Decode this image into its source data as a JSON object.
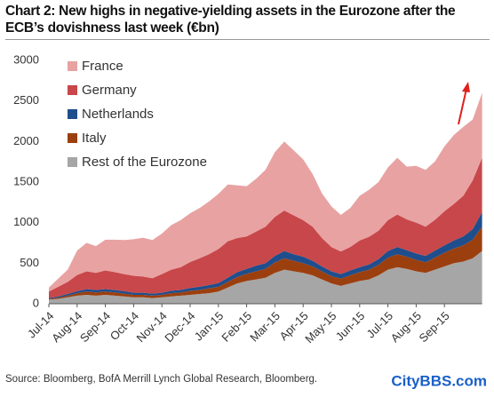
{
  "chart_data": {
    "type": "stacked-area",
    "title": "Chart 2: New highs in negative-yielding assets in the Eurozone after the ECB’s dovishness last week (€bn)",
    "source": "Source: Bloomberg, BofA Merrill Lynch Global Research, Bloomberg.",
    "watermark": "CityBBS.com",
    "categories": [
      "Jul-14",
      null,
      null,
      "Aug-14",
      null,
      null,
      "Sep-14",
      null,
      null,
      "Oct-14",
      null,
      null,
      "Nov-14",
      null,
      null,
      "Dec-14",
      null,
      null,
      "Jan-15",
      null,
      null,
      "Feb-15",
      null,
      null,
      "Mar-15",
      null,
      null,
      "Apr-15",
      null,
      null,
      "May-15",
      null,
      null,
      "Jun-15",
      null,
      null,
      "Jul-15",
      null,
      null,
      "Aug-15",
      null,
      null,
      "Sep-15",
      null,
      null,
      null,
      null
    ],
    "series": [
      {
        "name": "Rest of the Eurozone",
        "color": "#a6a6a6",
        "values": [
          50,
          60,
          80,
          100,
          110,
          100,
          110,
          100,
          90,
          80,
          80,
          70,
          80,
          90,
          100,
          110,
          120,
          130,
          150,
          200,
          250,
          280,
          300,
          320,
          380,
          420,
          400,
          380,
          350,
          300,
          250,
          220,
          250,
          280,
          300,
          350,
          420,
          450,
          430,
          400,
          380,
          420,
          460,
          500,
          520,
          560,
          650
        ]
      },
      {
        "name": "Italy",
        "color": "#9c3f0f",
        "values": [
          10,
          15,
          20,
          30,
          40,
          40,
          40,
          40,
          35,
          30,
          30,
          30,
          30,
          40,
          40,
          50,
          50,
          60,
          60,
          70,
          80,
          90,
          100,
          110,
          130,
          140,
          130,
          120,
          110,
          100,
          90,
          90,
          100,
          110,
          120,
          130,
          150,
          160,
          150,
          140,
          130,
          150,
          170,
          180,
          200,
          230,
          300
        ]
      },
      {
        "name": "Netherlands",
        "color": "#1f4e8c",
        "values": [
          10,
          15,
          20,
          25,
          30,
          30,
          30,
          30,
          30,
          25,
          25,
          25,
          25,
          30,
          30,
          35,
          40,
          40,
          45,
          50,
          60,
          60,
          70,
          70,
          80,
          90,
          80,
          80,
          70,
          60,
          60,
          55,
          60,
          60,
          65,
          70,
          80,
          90,
          80,
          80,
          80,
          85,
          90,
          100,
          110,
          130,
          180
        ]
      },
      {
        "name": "Germany",
        "color": "#c8474a",
        "values": [
          80,
          120,
          150,
          200,
          220,
          210,
          230,
          220,
          210,
          210,
          200,
          190,
          230,
          260,
          280,
          320,
          350,
          380,
          420,
          450,
          420,
          400,
          420,
          450,
          480,
          500,
          480,
          450,
          420,
          350,
          300,
          280,
          290,
          330,
          340,
          350,
          380,
          400,
          380,
          380,
          360,
          380,
          420,
          450,
          500,
          600,
          670
        ]
      },
      {
        "name": "France",
        "color": "#e8a2a2",
        "values": [
          50,
          100,
          150,
          300,
          350,
          330,
          380,
          400,
          420,
          450,
          480,
          470,
          500,
          550,
          580,
          600,
          620,
          650,
          680,
          700,
          650,
          620,
          650,
          700,
          800,
          850,
          800,
          750,
          650,
          550,
          500,
          450,
          480,
          550,
          580,
          600,
          650,
          700,
          650,
          700,
          700,
          720,
          800,
          850,
          850,
          750,
          800
        ]
      }
    ],
    "ylim": [
      0,
      3000
    ],
    "yticks": [
      0,
      500,
      1000,
      1500,
      2000,
      2500,
      3000
    ]
  }
}
